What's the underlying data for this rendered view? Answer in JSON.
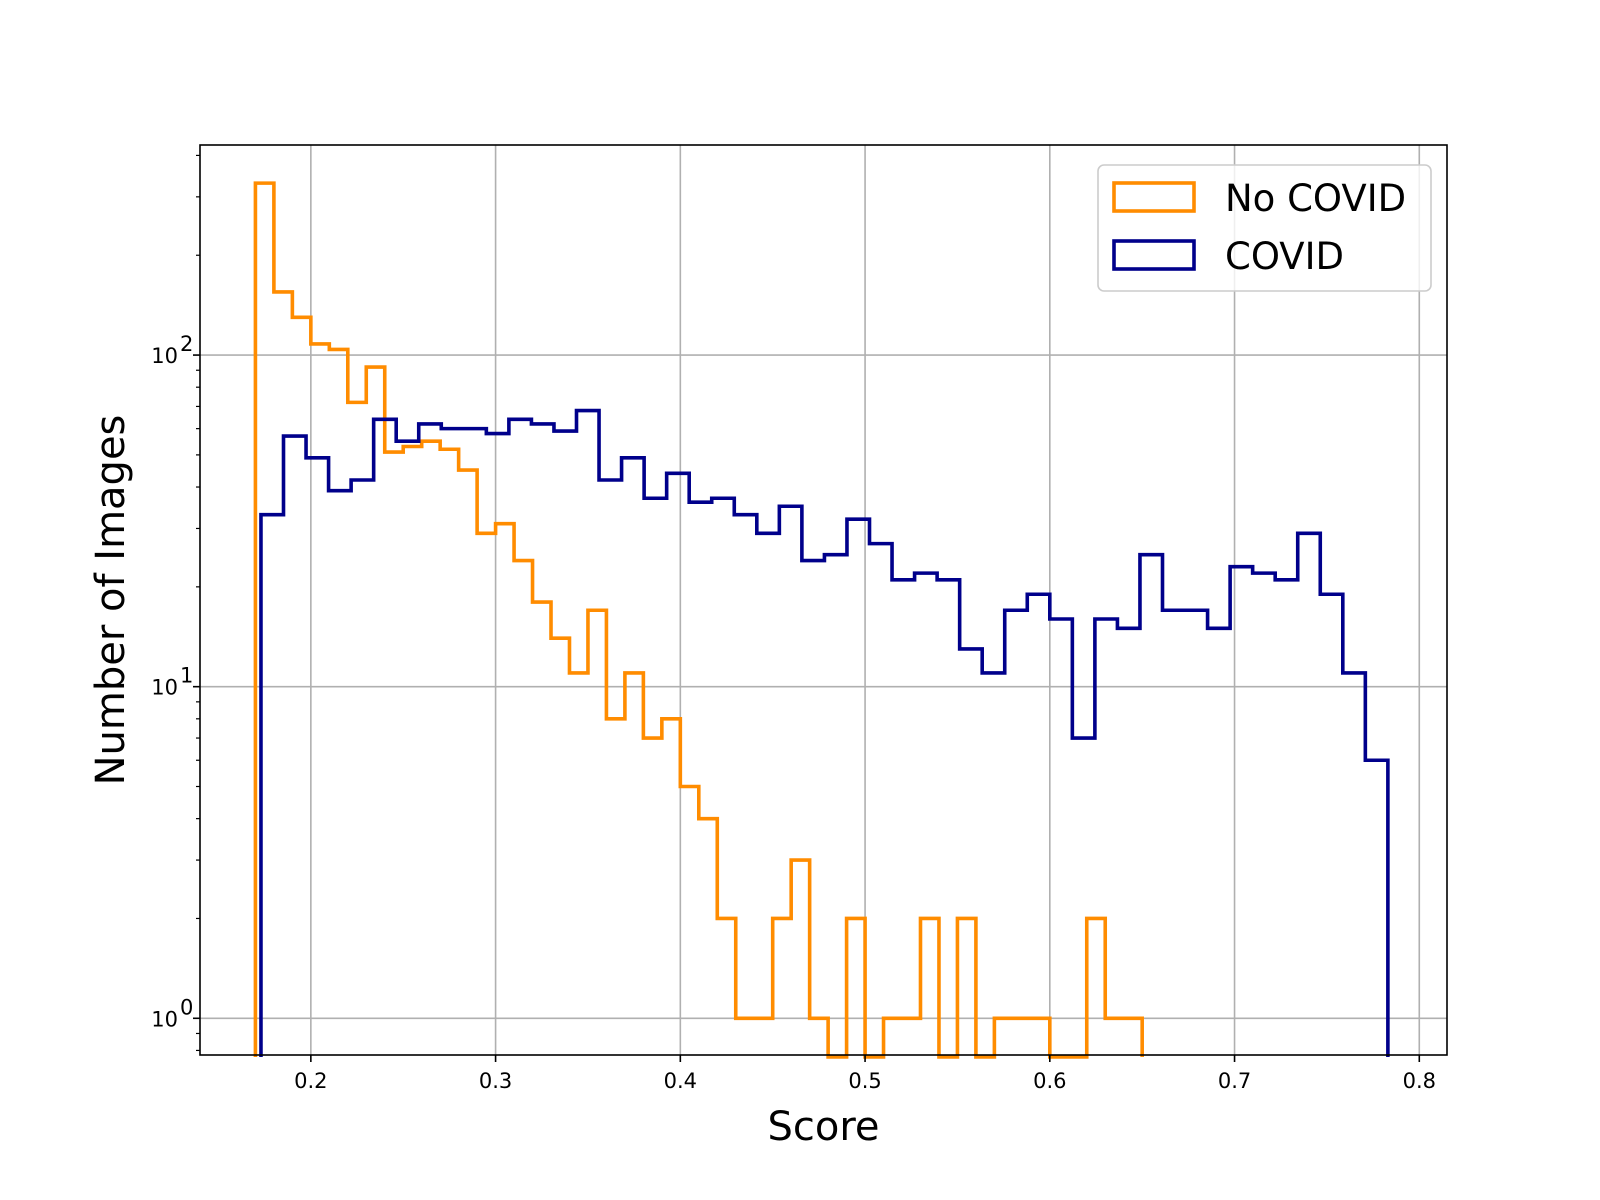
{
  "chart_data": {
    "type": "histogram",
    "title": "",
    "xlabel": "Score",
    "ylabel": "Number of Images",
    "xlim": [
      0.14,
      0.815
    ],
    "ylim": [
      0.775,
      430
    ],
    "yscale": "log",
    "grid": true,
    "legend_position": "top-right",
    "x_ticks": [
      "0.2",
      "0.3",
      "0.4",
      "0.5",
      "0.6",
      "0.7",
      "0.8"
    ],
    "x_tick_values": [
      0.2,
      0.3,
      0.4,
      0.5,
      0.6,
      0.7,
      0.8
    ],
    "y_ticks": [
      {
        "value": 1,
        "base": "10",
        "exp": "0"
      },
      {
        "value": 10,
        "base": "10",
        "exp": "1"
      },
      {
        "value": 100,
        "base": "10",
        "exp": "2"
      }
    ],
    "series": [
      {
        "name": "No COVID",
        "color": "#ff8c00",
        "bin_start": 0.17,
        "bin_width": 0.01,
        "counts": [
          330,
          155,
          130,
          108,
          104,
          72,
          92,
          51,
          53,
          55,
          52,
          45,
          29,
          31,
          24,
          18,
          14,
          11,
          17,
          8,
          11,
          7,
          8,
          5,
          4,
          2,
          1,
          1,
          2,
          3,
          1,
          0,
          2,
          0,
          1,
          1,
          2,
          0,
          2,
          0,
          1,
          1,
          1,
          0,
          0,
          2,
          1,
          1
        ]
      },
      {
        "name": "COVID",
        "color": "#00008b",
        "bin_start": 0.173,
        "bin_width": 0.0122,
        "counts": [
          33,
          57,
          49,
          39,
          42,
          64,
          55,
          62,
          60,
          60,
          58,
          64,
          62,
          59,
          68,
          42,
          49,
          37,
          44,
          36,
          37,
          33,
          29,
          35,
          24,
          25,
          32,
          27,
          21,
          22,
          21,
          13,
          11,
          17,
          19,
          16,
          7,
          16,
          15,
          25,
          17,
          17,
          15,
          23,
          22,
          21,
          29,
          19,
          11,
          6
        ]
      }
    ]
  }
}
